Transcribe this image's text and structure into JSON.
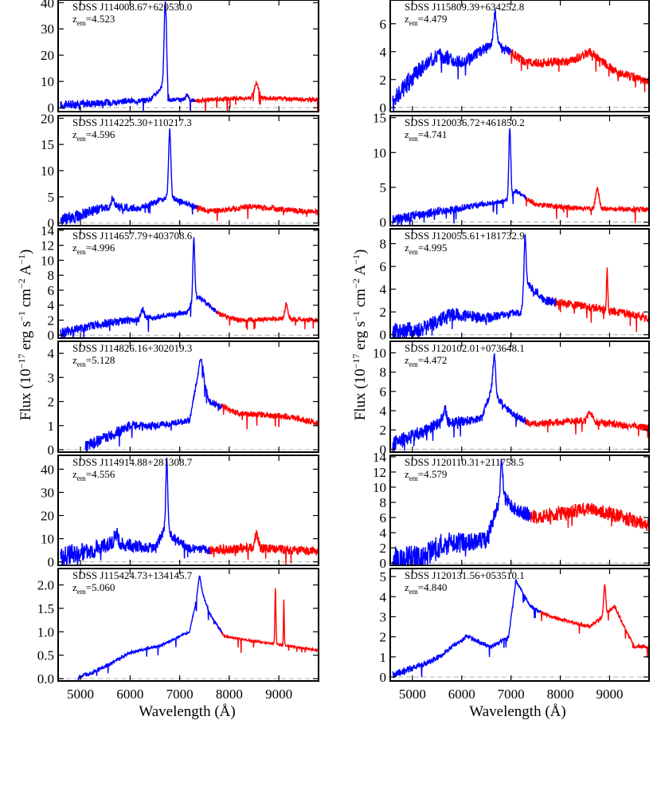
{
  "figure": {
    "xlabel": "Wavelength (Å)",
    "ylabel_main": "Flux (10",
    "ylabel_exp1": "−17",
    "ylabel_mid": " erg s",
    "ylabel_exp2": "−1",
    "ylabel_mid2": " cm",
    "ylabel_exp3": "−2",
    "ylabel_mid3": " A",
    "ylabel_exp4": "−1",
    "ylabel_end": ")"
  },
  "colors": {
    "blue": "#0000ff",
    "red": "#ff0000",
    "zero_line": "#b0b0b0",
    "axis": "#000000"
  },
  "chart_data": [
    {
      "type": "line",
      "name": "SDSS J114008.67+620530.0",
      "zem": "4.523",
      "col": 0,
      "row": 0,
      "xlim": [
        4550,
        9800
      ],
      "ylim": [
        -1.5,
        41
      ],
      "yticks": [
        0,
        10,
        20,
        30,
        40
      ],
      "xlabel": "Wavelength (Å)",
      "ylabel": "Flux (10^-17 erg s^-1 cm^-2 A^-1)",
      "continuum": [
        [
          4600,
          1
        ],
        [
          5500,
          2
        ],
        [
          6400,
          3
        ],
        [
          6650,
          8
        ],
        [
          6750,
          3
        ],
        [
          7400,
          2.8
        ],
        [
          8400,
          3.8
        ],
        [
          9800,
          3
        ]
      ],
      "emission": [
        [
          6712,
          36,
          50
        ],
        [
          7150,
          2,
          60
        ],
        [
          8550,
          5.5,
          90
        ]
      ],
      "blueEnd": 7300,
      "redStart": 7000,
      "noise": 0.25
    },
    {
      "type": "line",
      "name": "SDSS J115809.39+634252.8",
      "zem": "4.479",
      "col": 1,
      "row": 0,
      "xlim": [
        4550,
        9800
      ],
      "ylim": [
        -0.3,
        7.7
      ],
      "yticks": [
        0,
        2,
        4,
        6
      ],
      "xlabel": "Wavelength (Å)",
      "ylabel": "Flux (10^-17 erg s^-1 cm^-2 A^-1)",
      "continuum": [
        [
          4600,
          0.3
        ],
        [
          5000,
          2.2
        ],
        [
          5500,
          3.8
        ],
        [
          6000,
          3.2
        ],
        [
          6600,
          4.5
        ],
        [
          6900,
          4.2
        ],
        [
          7300,
          3.2
        ],
        [
          8200,
          3.3
        ],
        [
          8600,
          4.0
        ],
        [
          9100,
          2.6
        ],
        [
          9800,
          1.8
        ]
      ],
      "emission": [
        [
          6680,
          2.3,
          70
        ]
      ],
      "blueEnd": 7000,
      "redStart": 6950,
      "noise": 0.55
    },
    {
      "type": "line",
      "name": "SDSS J114225.30+110217.3",
      "zem": "4.596",
      "col": 0,
      "row": 1,
      "xlim": [
        4550,
        9800
      ],
      "ylim": [
        -0.5,
        20.5
      ],
      "yticks": [
        0,
        5,
        10,
        15,
        20
      ],
      "xlabel": "Wavelength (Å)",
      "ylabel": "Flux (10^-17 erg s^-1 cm^-2 A^-1)",
      "continuum": [
        [
          4600,
          0.5
        ],
        [
          5500,
          3
        ],
        [
          6200,
          2.8
        ],
        [
          6750,
          5
        ],
        [
          6900,
          4.5
        ],
        [
          7300,
          3.2
        ],
        [
          7600,
          2.2
        ],
        [
          8400,
          3.2
        ],
        [
          9200,
          2.5
        ],
        [
          9800,
          2
        ]
      ],
      "emission": [
        [
          5650,
          1.5,
          80
        ],
        [
          6800,
          13,
          45
        ]
      ],
      "blueEnd": 7350,
      "redStart": 7250,
      "noise": 0.35
    },
    {
      "type": "line",
      "name": "SDSS J120036.72+461850.2",
      "zem": "4.741",
      "col": 1,
      "row": 1,
      "xlim": [
        4550,
        9800
      ],
      "ylim": [
        -0.5,
        15.3
      ],
      "yticks": [
        0,
        5,
        10,
        15
      ],
      "xlabel": "Wavelength (Å)",
      "ylabel": "Flux (10^-17 erg s^-1 cm^-2 A^-1)",
      "continuum": [
        [
          4600,
          0.3
        ],
        [
          5500,
          1.5
        ],
        [
          6400,
          2.5
        ],
        [
          6950,
          3.2
        ],
        [
          7100,
          4.5
        ],
        [
          7500,
          2.5
        ],
        [
          8400,
          2
        ],
        [
          9800,
          1.8
        ]
      ],
      "emission": [
        [
          6975,
          10,
          40
        ],
        [
          8750,
          2.8,
          70
        ]
      ],
      "blueEnd": 7300,
      "redStart": 7200,
      "noise": 0.3
    },
    {
      "type": "line",
      "name": "SDSS J114657.79+403708.6",
      "zem": "4.996",
      "col": 0,
      "row": 2,
      "xlim": [
        4550,
        9800
      ],
      "ylim": [
        -0.4,
        14.2
      ],
      "yticks": [
        0,
        2,
        4,
        6,
        8,
        10,
        12,
        14
      ],
      "xlabel": "Wavelength (Å)",
      "ylabel": "Flux (10^-17 erg s^-1 cm^-2 A^-1)",
      "continuum": [
        [
          4600,
          0.3
        ],
        [
          5400,
          1.5
        ],
        [
          6300,
          2.2
        ],
        [
          7150,
          3
        ],
        [
          7300,
          5.5
        ],
        [
          7500,
          4.5
        ],
        [
          7800,
          2.8
        ],
        [
          8200,
          2
        ],
        [
          9000,
          2.2
        ],
        [
          9800,
          2
        ]
      ],
      "emission": [
        [
          6250,
          1.2,
          60
        ],
        [
          7285,
          8,
          35
        ],
        [
          9150,
          2,
          60
        ]
      ],
      "blueEnd": 7750,
      "redStart": 7500,
      "noise": 0.3
    },
    {
      "type": "line",
      "name": "SDSS J120055.61+181732.9",
      "zem": "4.995",
      "col": 1,
      "row": 2,
      "xlim": [
        4550,
        9800
      ],
      "ylim": [
        -0.3,
        9.3
      ],
      "yticks": [
        0,
        2,
        4,
        6,
        8
      ],
      "xlabel": "Wavelength (Å)",
      "ylabel": "Flux (10^-17 erg s^-1 cm^-2 A^-1)",
      "continuum": [
        [
          4600,
          0.2
        ],
        [
          5200,
          0.5
        ],
        [
          5800,
          1.8
        ],
        [
          6500,
          1.5
        ],
        [
          7200,
          2
        ],
        [
          7300,
          4.5
        ],
        [
          7700,
          3
        ],
        [
          8500,
          2.5
        ],
        [
          9800,
          1.5
        ]
      ],
      "emission": [
        [
          7285,
          4.5,
          40
        ],
        [
          8950,
          3.5,
          25
        ]
      ],
      "blueEnd": 7900,
      "redStart": 7700,
      "noise": 0.55
    },
    {
      "type": "line",
      "name": "SDSS J114826.16+302019.3",
      "zem": "5.128",
      "col": 0,
      "row": 3,
      "xlim": [
        4550,
        9800
      ],
      "ylim": [
        -0.1,
        4.5
      ],
      "yticks": [
        0,
        1,
        2,
        3,
        4
      ],
      "xlabel": "Wavelength (Å)",
      "ylabel": "Flux (10^-17 erg s^-1 cm^-2 A^-1)",
      "continuum": [
        [
          5100,
          0.1
        ],
        [
          5500,
          0.5
        ],
        [
          6000,
          1.0
        ],
        [
          6500,
          1.0
        ],
        [
          7200,
          1.2
        ],
        [
          7400,
          3.5
        ],
        [
          7600,
          2
        ],
        [
          8200,
          1.5
        ],
        [
          9100,
          1.4
        ],
        [
          9800,
          1.1
        ]
      ],
      "emission": [
        [
          7450,
          0.5,
          60
        ]
      ],
      "blueEnd": 7850,
      "redStart": 7700,
      "noise": 0.4,
      "blueStart": 5100
    },
    {
      "type": "line",
      "name": "SDSS J120102.01+073648.1",
      "zem": "4.472",
      "col": 1,
      "row": 3,
      "xlim": [
        4550,
        9800
      ],
      "ylim": [
        -0.3,
        11.2
      ],
      "yticks": [
        0,
        2,
        4,
        6,
        8,
        10
      ],
      "xlabel": "Wavelength (Å)",
      "ylabel": "Flux (10^-17 erg s^-1 cm^-2 A^-1)",
      "continuum": [
        [
          4600,
          0.5
        ],
        [
          5500,
          2.5
        ],
        [
          6400,
          3.2
        ],
        [
          6600,
          6
        ],
        [
          7000,
          3.8
        ],
        [
          7400,
          2.6
        ],
        [
          8400,
          3
        ],
        [
          9800,
          2.2
        ]
      ],
      "emission": [
        [
          5650,
          1.5,
          80
        ],
        [
          6660,
          4,
          55
        ],
        [
          8600,
          1,
          90
        ]
      ],
      "blueEnd": 7300,
      "redStart": 7200,
      "noise": 0.45
    },
    {
      "type": "line",
      "name": "SDSS J114914.88+281308.7",
      "zem": "4.556",
      "col": 0,
      "row": 4,
      "xlim": [
        4550,
        9800
      ],
      "ylim": [
        -1.5,
        46
      ],
      "yticks": [
        0,
        10,
        20,
        30,
        40
      ],
      "xlabel": "Wavelength (Å)",
      "ylabel": "Flux (10^-17 erg s^-1 cm^-2 A^-1)",
      "continuum": [
        [
          4600,
          2
        ],
        [
          5700,
          8
        ],
        [
          6500,
          6
        ],
        [
          6700,
          14
        ],
        [
          6900,
          10
        ],
        [
          7200,
          6
        ],
        [
          7600,
          5
        ],
        [
          8400,
          6
        ],
        [
          9800,
          4.5
        ]
      ],
      "emission": [
        [
          5720,
          4,
          80
        ],
        [
          6740,
          30,
          40
        ],
        [
          8550,
          6,
          70
        ]
      ],
      "blueEnd": 7600,
      "redStart": 7500,
      "noise": 0.6
    },
    {
      "type": "line",
      "name": "SDSS J120110.31+211758.5",
      "zem": "4.579",
      "col": 1,
      "row": 4,
      "xlim": [
        4550,
        9800
      ],
      "ylim": [
        -0.3,
        14.2
      ],
      "yticks": [
        0,
        2,
        4,
        6,
        8,
        10,
        12,
        14
      ],
      "xlabel": "Wavelength (Å)",
      "ylabel": "Flux (10^-17 erg s^-1 cm^-2 A^-1)",
      "continuum": [
        [
          4600,
          0.2
        ],
        [
          5200,
          0.5
        ],
        [
          5600,
          2.5
        ],
        [
          6500,
          3
        ],
        [
          6800,
          9
        ],
        [
          7100,
          7
        ],
        [
          7500,
          6
        ],
        [
          8600,
          7.2
        ],
        [
          9800,
          5
        ]
      ],
      "emission": [
        [
          6810,
          4,
          50
        ]
      ],
      "blueEnd": 7400,
      "redStart": 7300,
      "noise": 0.9
    },
    {
      "type": "line",
      "name": "SDSS J115424.73+134145.7",
      "zem": "5.060",
      "col": 0,
      "row": 5,
      "xlim": [
        4550,
        9800
      ],
      "ylim": [
        -0.05,
        2.35
      ],
      "yticks": [
        0.0,
        0.5,
        1.0,
        1.5,
        2.0
      ],
      "tickDecimals": 1,
      "xlabel": "Wavelength (Å)",
      "ylabel": "Flux (10^-17 erg s^-1 cm^-2 A^-1)",
      "continuum": [
        [
          4950,
          0.02
        ],
        [
          5400,
          0.2
        ],
        [
          6000,
          0.55
        ],
        [
          6600,
          0.7
        ],
        [
          7200,
          1.0
        ],
        [
          7400,
          2.0
        ],
        [
          7600,
          1.4
        ],
        [
          7900,
          0.9
        ],
        [
          8500,
          0.8
        ],
        [
          9200,
          0.7
        ],
        [
          9800,
          0.6
        ]
      ],
      "emission": [
        [
          7400,
          0.2,
          60
        ],
        [
          8930,
          1.2,
          20
        ],
        [
          9100,
          1.0,
          15
        ]
      ],
      "blueEnd": 7850,
      "redStart": 7700,
      "noise": 0.13,
      "blueStart": 4950
    },
    {
      "type": "line",
      "name": "SDSS J120131.56+053510.1",
      "zem": "4.840",
      "col": 1,
      "row": 5,
      "xlim": [
        4550,
        9800
      ],
      "ylim": [
        -0.2,
        5.4
      ],
      "yticks": [
        0,
        1,
        2,
        3,
        4,
        5
      ],
      "xlabel": "Wavelength (Å)",
      "ylabel": "Flux (10^-17 erg s^-1 cm^-2 A^-1)",
      "continuum": [
        [
          4600,
          0.1
        ],
        [
          5400,
          0.8
        ],
        [
          6100,
          2.0
        ],
        [
          6600,
          1.5
        ],
        [
          6950,
          2
        ],
        [
          7100,
          4.8
        ],
        [
          7400,
          3.5
        ],
        [
          7800,
          3
        ],
        [
          8600,
          2.5
        ],
        [
          9100,
          3.5
        ],
        [
          9500,
          1.5
        ],
        [
          9800,
          1.5
        ]
      ],
      "emission": [
        [
          8900,
          1.5,
          40
        ]
      ],
      "blueEnd": 7600,
      "redStart": 7500,
      "noise": 0.2
    }
  ]
}
